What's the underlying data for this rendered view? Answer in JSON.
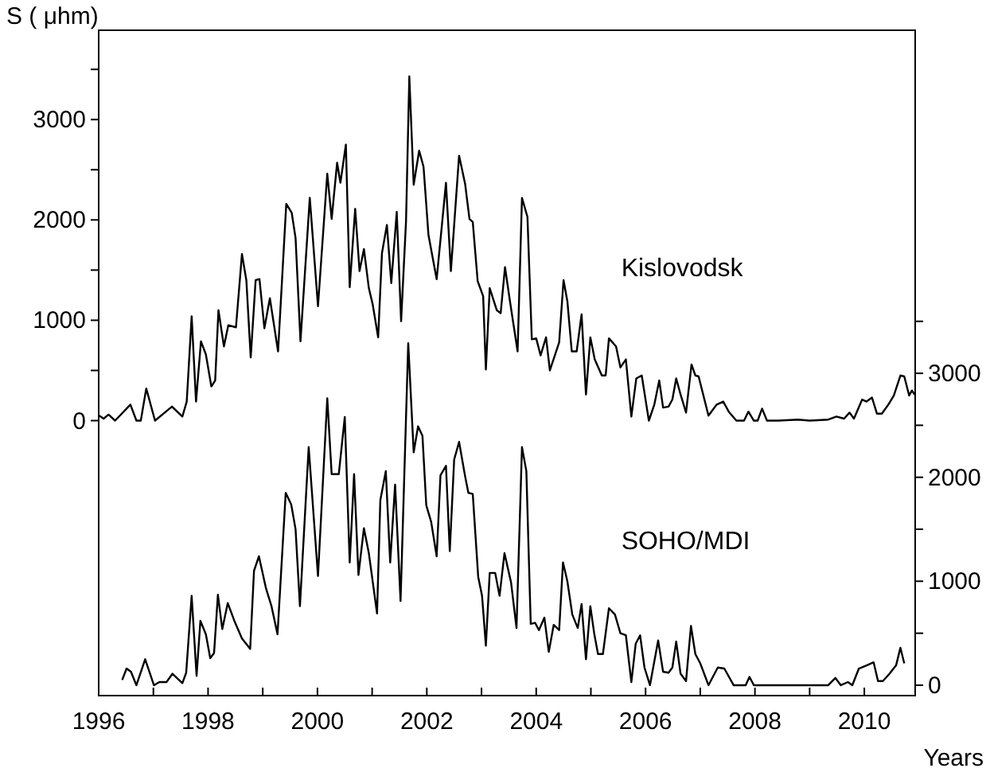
{
  "chart_data": {
    "type": "line",
    "xlabel": "Years",
    "ylabel": "S ( μhm)",
    "xlim": [
      1996,
      2010.93
    ],
    "xticks": [
      1996,
      {
        "value": 1997,
        "label": null
      },
      1998,
      {
        "value": 1999,
        "label": null
      },
      2000,
      {
        "value": 2001,
        "label": null
      },
      2002,
      {
        "value": 2003,
        "label": null
      },
      2004,
      {
        "value": 2005,
        "label": null
      },
      2006,
      {
        "value": 2007,
        "label": null
      },
      2008,
      {
        "value": 2009,
        "label": null
      },
      2010
    ],
    "ylim": [
      -2740,
      3890
    ],
    "yticks": [
      0,
      {
        "value": 500,
        "label": null
      },
      1000,
      {
        "value": 1500,
        "label": null
      },
      2000,
      {
        "value": 2500,
        "label": null
      },
      3000,
      {
        "value": 3500,
        "label": null
      }
    ],
    "y2lim": [
      -100,
      6300
    ],
    "y2ticks": [
      0,
      {
        "value": 500,
        "label": null
      },
      1000,
      {
        "value": 1500,
        "label": null
      },
      2000,
      {
        "value": 2500,
        "label": null
      },
      3000,
      {
        "value": 3500,
        "label": null
      }
    ],
    "grid": false,
    "marker": "none",
    "line_style": "solid",
    "series": [
      {
        "name": "Kislovodsk",
        "color": "#000000",
        "x": [
          1996.01,
          1996.09,
          1996.18,
          1996.3,
          1996.58,
          1996.69,
          1996.77,
          1996.87,
          1997.03,
          1997.34,
          1997.53,
          1997.61,
          1997.7,
          1997.78,
          1997.87,
          1997.96,
          1998.06,
          1998.13,
          1998.19,
          1998.29,
          1998.37,
          1998.51,
          1998.62,
          1998.7,
          1998.78,
          1998.87,
          1998.94,
          1999.03,
          1999.13,
          1999.28,
          1999.43,
          1999.53,
          1999.6,
          1999.69,
          1999.86,
          2000.01,
          2000.18,
          2000.26,
          2000.36,
          2000.42,
          2000.52,
          2000.59,
          2000.69,
          2000.77,
          2000.85,
          2000.94,
          2001.01,
          2001.11,
          2001.18,
          2001.27,
          2001.35,
          2001.45,
          2001.53,
          2001.62,
          2001.68,
          2001.76,
          2001.86,
          2001.94,
          2002.03,
          2002.18,
          2002.31,
          2002.35,
          2002.44,
          2002.59,
          2002.7,
          2002.78,
          2002.84,
          2002.93,
          2003.03,
          2003.08,
          2003.15,
          2003.28,
          2003.35,
          2003.43,
          2003.52,
          2003.66,
          2003.74,
          2003.84,
          2003.92,
          2004.0,
          2004.08,
          2004.18,
          2004.25,
          2004.42,
          2004.5,
          2004.57,
          2004.65,
          2004.74,
          2004.83,
          2004.91,
          2004.99,
          2005.07,
          2005.2,
          2005.27,
          2005.33,
          2005.46,
          2005.54,
          2005.64,
          2005.74,
          2005.83,
          2005.93,
          2006.06,
          2006.16,
          2006.25,
          2006.32,
          2006.42,
          2006.49,
          2006.56,
          2006.64,
          2006.74,
          2006.84,
          2006.91,
          2006.97,
          2007.15,
          2007.3,
          2007.42,
          2007.52,
          2007.66,
          2007.8,
          2007.88,
          2007.98,
          2008.05,
          2008.13,
          2008.22,
          2008.42,
          2008.79,
          2009.0,
          2009.34,
          2009.49,
          2009.63,
          2009.73,
          2009.81,
          2009.96,
          2010.04,
          2010.14,
          2010.23,
          2010.32,
          2010.44,
          2010.54,
          2010.66,
          2010.73,
          2010.82,
          2010.87,
          2010.92
        ],
        "values": [
          50,
          20,
          60,
          0,
          160,
          0,
          0,
          320,
          0,
          140,
          40,
          190,
          1040,
          190,
          790,
          660,
          340,
          400,
          1100,
          740,
          950,
          930,
          1660,
          1400,
          630,
          1400,
          1410,
          920,
          1220,
          690,
          2160,
          2070,
          1820,
          790,
          2220,
          1140,
          2460,
          2010,
          2570,
          2370,
          2750,
          1330,
          2110,
          1490,
          1710,
          1320,
          1160,
          830,
          1670,
          1950,
          1370,
          2080,
          990,
          1990,
          3430,
          2350,
          2690,
          2530,
          1850,
          1410,
          2140,
          2370,
          1490,
          2640,
          2360,
          2010,
          1980,
          1390,
          1240,
          510,
          1320,
          1100,
          1070,
          1530,
          1190,
          690,
          2220,
          2030,
          810,
          820,
          650,
          830,
          500,
          780,
          1400,
          1190,
          690,
          690,
          1060,
          260,
          830,
          610,
          450,
          450,
          820,
          740,
          530,
          610,
          40,
          420,
          450,
          0,
          160,
          400,
          130,
          140,
          210,
          420,
          260,
          80,
          560,
          450,
          440,
          50,
          160,
          190,
          90,
          0,
          0,
          90,
          0,
          0,
          120,
          0,
          0,
          10,
          0,
          10,
          40,
          20,
          80,
          20,
          210,
          190,
          230,
          70,
          70,
          160,
          250,
          450,
          440,
          250,
          300,
          260
        ]
      },
      {
        "name": "SOHO/MDI",
        "color": "#000000",
        "axis": "y2",
        "x": [
          1996.43,
          1996.51,
          1996.59,
          1996.69,
          1996.85,
          1997.01,
          1997.11,
          1997.24,
          1997.35,
          1997.53,
          1997.6,
          1997.7,
          1997.79,
          1997.86,
          1997.96,
          1998.04,
          1998.11,
          1998.18,
          1998.26,
          1998.36,
          1998.48,
          1998.62,
          1998.77,
          1998.84,
          1998.93,
          1999.06,
          1999.16,
          1999.27,
          1999.42,
          1999.52,
          1999.6,
          1999.68,
          1999.84,
          2000.01,
          2000.18,
          2000.26,
          2000.39,
          2000.5,
          2000.59,
          2000.67,
          2000.75,
          2000.85,
          2000.94,
          2001.09,
          2001.15,
          2001.25,
          2001.33,
          2001.42,
          2001.52,
          2001.66,
          2001.76,
          2001.84,
          2001.92,
          2001.99,
          2002.08,
          2002.18,
          2002.25,
          2002.35,
          2002.42,
          2002.5,
          2002.59,
          2002.7,
          2002.76,
          2002.84,
          2002.94,
          2003.01,
          2003.08,
          2003.15,
          2003.25,
          2003.33,
          2003.42,
          2003.54,
          2003.64,
          2003.74,
          2003.82,
          2003.9,
          2003.98,
          2004.05,
          2004.15,
          2004.23,
          2004.32,
          2004.42,
          2004.49,
          2004.57,
          2004.66,
          2004.76,
          2004.83,
          2004.91,
          2004.99,
          2005.06,
          2005.13,
          2005.22,
          2005.33,
          2005.44,
          2005.54,
          2005.64,
          2005.74,
          2005.82,
          2005.9,
          2005.98,
          2006.08,
          2006.23,
          2006.32,
          2006.42,
          2006.49,
          2006.56,
          2006.64,
          2006.74,
          2006.83,
          2006.91,
          2007.0,
          2007.15,
          2007.32,
          2007.44,
          2007.61,
          2007.83,
          2007.9,
          2007.98,
          2008.32,
          2008.79,
          2009.34,
          2009.47,
          2009.57,
          2009.7,
          2009.78,
          2009.9,
          2010.04,
          2010.17,
          2010.25,
          2010.34,
          2010.46,
          2010.58,
          2010.66,
          2010.73
        ],
        "values": [
          50,
          160,
          130,
          0,
          250,
          0,
          30,
          30,
          110,
          20,
          120,
          860,
          90,
          620,
          490,
          260,
          310,
          870,
          540,
          790,
          620,
          450,
          350,
          1100,
          1240,
          930,
          760,
          490,
          1850,
          1740,
          1500,
          760,
          2290,
          1050,
          2760,
          2030,
          2030,
          2580,
          1180,
          2030,
          1060,
          1510,
          1270,
          690,
          1780,
          2060,
          1180,
          1930,
          810,
          3290,
          2240,
          2490,
          2400,
          1730,
          1570,
          1240,
          2020,
          2110,
          1290,
          2170,
          2340,
          2010,
          1850,
          1840,
          1040,
          860,
          380,
          1080,
          1080,
          860,
          1270,
          990,
          550,
          2290,
          2060,
          590,
          600,
          530,
          650,
          320,
          580,
          530,
          1180,
          1000,
          680,
          550,
          780,
          250,
          760,
          500,
          300,
          300,
          740,
          680,
          500,
          480,
          30,
          400,
          480,
          170,
          0,
          430,
          130,
          120,
          170,
          420,
          110,
          40,
          570,
          300,
          210,
          0,
          170,
          160,
          0,
          0,
          80,
          0,
          0,
          0,
          0,
          70,
          0,
          30,
          0,
          160,
          190,
          220,
          40,
          40,
          110,
          190,
          360,
          210
        ]
      }
    ]
  }
}
